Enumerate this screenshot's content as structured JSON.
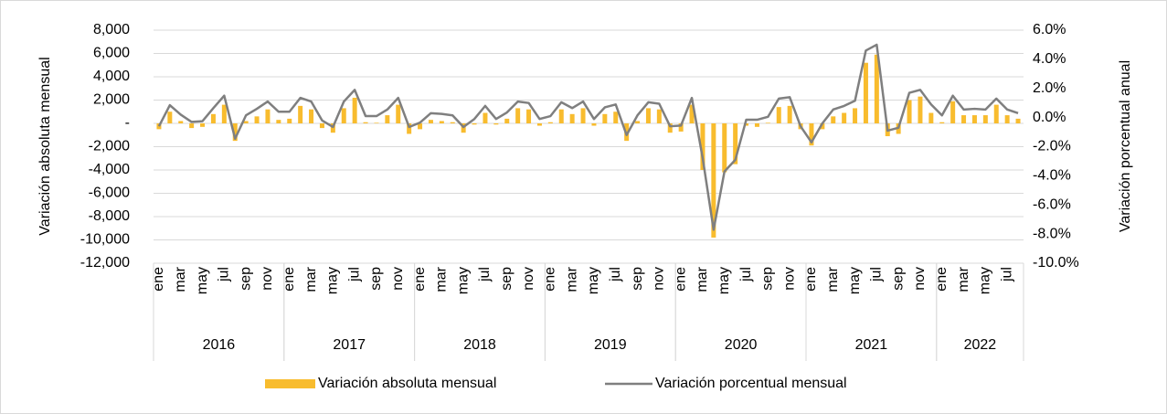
{
  "chart_data": {
    "type": "bar_line",
    "y_label": "Variación absoluta mensual",
    "y2_label": "Variación porcentual anual",
    "categories": [
      "ene",
      null,
      "mar",
      null,
      "may",
      null,
      "jul",
      null,
      "sep",
      null,
      "nov",
      null,
      "ene",
      null,
      "mar",
      null,
      "may",
      null,
      "jul",
      null,
      "sep",
      null,
      "nov",
      null,
      "ene",
      null,
      "mar",
      null,
      "may",
      null,
      "jul",
      null,
      "sep",
      null,
      "nov",
      null,
      "ene",
      null,
      "mar",
      null,
      "may",
      null,
      "jul",
      null,
      "sep",
      null,
      "nov",
      null,
      "ene",
      null,
      "mar",
      null,
      "may",
      null,
      "jul",
      null,
      "sep",
      null,
      "nov",
      null,
      "ene",
      null,
      "mar",
      null,
      "may",
      null,
      "jul",
      null,
      "sep",
      null,
      "nov",
      null,
      "ene",
      null,
      "mar",
      null,
      "may",
      null,
      "jul",
      null
    ],
    "year_groups": [
      "2016",
      "2017",
      "2018",
      "2019",
      "2020",
      "2021",
      "2022"
    ],
    "series": [
      {
        "name": "Variación absoluta mensual",
        "type": "bar",
        "color": "#f8bc2e",
        "values": [
          -500,
          1000,
          200,
          -400,
          -300,
          800,
          1600,
          -1500,
          200,
          600,
          1200,
          300,
          400,
          1500,
          1200,
          -400,
          -800,
          1300,
          2200,
          100,
          50,
          700,
          1600,
          -900,
          -500,
          300,
          200,
          100,
          -800,
          -100,
          900,
          -100,
          400,
          1300,
          1200,
          -200,
          100,
          1200,
          800,
          1300,
          -200,
          800,
          1000,
          -1500,
          200,
          1300,
          1200,
          -800,
          -700,
          1600,
          -4000,
          -9800,
          -4200,
          -3500,
          -200,
          -300,
          50,
          1400,
          1500,
          -500,
          -1900,
          -500,
          600,
          900,
          1300,
          5200,
          5900,
          -1100,
          -900,
          2000,
          2300,
          900,
          100,
          1900,
          700,
          700,
          700,
          1600,
          700,
          400
        ]
      },
      {
        "name": "Variación porcentual mensual",
        "type": "line",
        "axis": "y2",
        "color": "#7f7f7f",
        "values": [
          -0.6,
          0.85,
          0.2,
          -0.3,
          -0.25,
          0.65,
          1.5,
          -1.45,
          0.15,
          0.6,
          1.1,
          0.4,
          0.4,
          1.35,
          1.1,
          -0.2,
          -0.65,
          1.1,
          1.9,
          0.1,
          0.1,
          0.55,
          1.35,
          -0.65,
          -0.35,
          0.3,
          0.25,
          0.15,
          -0.65,
          -0.1,
          0.8,
          -0.1,
          0.35,
          1.1,
          1.0,
          -0.1,
          0.1,
          1.05,
          0.65,
          1.1,
          -0.1,
          0.7,
          0.9,
          -1.2,
          0.15,
          1.05,
          0.95,
          -0.6,
          -0.55,
          1.35,
          -2.8,
          -7.7,
          -3.7,
          -2.9,
          -0.15,
          -0.15,
          0.05,
          1.3,
          1.4,
          -0.6,
          -1.7,
          -0.4,
          0.55,
          0.8,
          1.15,
          4.6,
          5.0,
          -0.9,
          -0.7,
          1.7,
          1.9,
          0.9,
          0.15,
          1.5,
          0.55,
          0.6,
          0.55,
          1.3,
          0.55,
          0.3
        ]
      }
    ],
    "ylim": [
      -12000,
      8000
    ],
    "yticks": [
      {
        "value": -12000,
        "label": "-12,000"
      },
      {
        "value": -10000,
        "label": "-10,000"
      },
      {
        "value": -8000,
        "label": "-8,000"
      },
      {
        "value": -6000,
        "label": "-6,000"
      },
      {
        "value": -4000,
        "label": "-4,000"
      },
      {
        "value": -2000,
        "label": "-2,000"
      },
      {
        "value": 0,
        "label": "-"
      },
      {
        "value": 2000,
        "label": "2,000"
      },
      {
        "value": 4000,
        "label": "4,000"
      },
      {
        "value": 6000,
        "label": "6,000"
      },
      {
        "value": 8000,
        "label": "8,000"
      }
    ],
    "y2lim": [
      -10,
      6
    ],
    "y2ticks": [
      {
        "value": -10,
        "label": "-10.0%"
      },
      {
        "value": -8,
        "label": "-8.0%"
      },
      {
        "value": -6,
        "label": "-6.0%"
      },
      {
        "value": -4,
        "label": "-4.0%"
      },
      {
        "value": -2,
        "label": "-2.0%"
      },
      {
        "value": 0,
        "label": "0.0%"
      },
      {
        "value": 2,
        "label": "2.0%"
      },
      {
        "value": 4,
        "label": "4.0%"
      },
      {
        "value": 6,
        "label": "6.0%"
      }
    ],
    "grid": true,
    "legend": "bottom"
  }
}
